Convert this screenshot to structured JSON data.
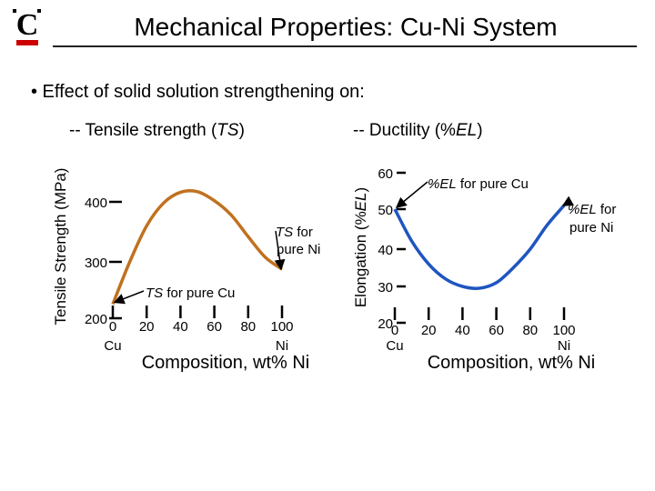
{
  "slide": {
    "title": "Mechanical Properties: Cu-Ni System",
    "bullet": "• Effect of solid solution strengthening on:",
    "sub_left_prefix": "-- Tensile strength (",
    "sub_left_em": "TS",
    "sub_left_suffix": ")",
    "sub_right_prefix": "-- Ductility (%",
    "sub_right_em": "EL",
    "sub_right_suffix": ")",
    "logo_letter": "C"
  },
  "colors": {
    "ts_curve": "#c0711f",
    "el_curve": "#1f55c0",
    "axis": "#000000"
  },
  "chart_data": [
    {
      "type": "line",
      "ylabel": "Tensile Strength (MPa)",
      "xlabel": "Composition, wt% Ni",
      "xticks": [
        0,
        20,
        40,
        60,
        80,
        100
      ],
      "xtick_labels": [
        "0",
        "20",
        "40",
        "60",
        "80",
        "100"
      ],
      "x_end_labels": {
        "left": "Cu",
        "right": "Ni"
      },
      "yticks": [
        200,
        300,
        400
      ],
      "ytick_labels": [
        "200",
        "300",
        "400"
      ],
      "xlim": [
        0,
        100
      ],
      "ylim": [
        200,
        420
      ],
      "series": [
        {
          "x": [
            0,
            10,
            20,
            30,
            40,
            50,
            60,
            70,
            80,
            90,
            100
          ],
          "y": [
            225,
            300,
            360,
            398,
            416,
            417,
            402,
            378,
            342,
            308,
            287
          ]
        }
      ],
      "annotations": [
        {
          "text_em": "TS",
          "text": " for pure Cu",
          "x": 0,
          "y": 225
        },
        {
          "text_em": "TS",
          "text": " for",
          "text2": "pure Ni",
          "x": 100,
          "y": 287
        }
      ]
    },
    {
      "type": "line",
      "ylabel_prefix": "Elongation (%",
      "ylabel_em": "EL",
      "ylabel_suffix": ")",
      "xlabel": "Composition, wt% Ni",
      "xticks": [
        0,
        20,
        40,
        60,
        80,
        100
      ],
      "xtick_labels": [
        "0",
        "20",
        "40",
        "60",
        "80",
        "100"
      ],
      "x_end_labels": {
        "left": "Cu",
        "right": "Ni"
      },
      "yticks": [
        20,
        30,
        40,
        50,
        60
      ],
      "ytick_labels": [
        "20",
        "30",
        "40",
        "50",
        "60"
      ],
      "xlim": [
        0,
        100
      ],
      "ylim": [
        20,
        60
      ],
      "series": [
        {
          "x": [
            0,
            10,
            20,
            30,
            40,
            50,
            60,
            70,
            80,
            90,
            100
          ],
          "y": [
            50,
            42,
            36,
            32,
            30,
            29.5,
            31,
            35,
            40,
            46,
            51
          ]
        }
      ],
      "annotations": [
        {
          "text_em": "%EL",
          "text": " for pure Cu",
          "x": 0,
          "y": 50
        },
        {
          "text_em": "%EL",
          "text": " for",
          "text2": "pure Ni",
          "x": 100,
          "y": 51
        }
      ]
    }
  ]
}
